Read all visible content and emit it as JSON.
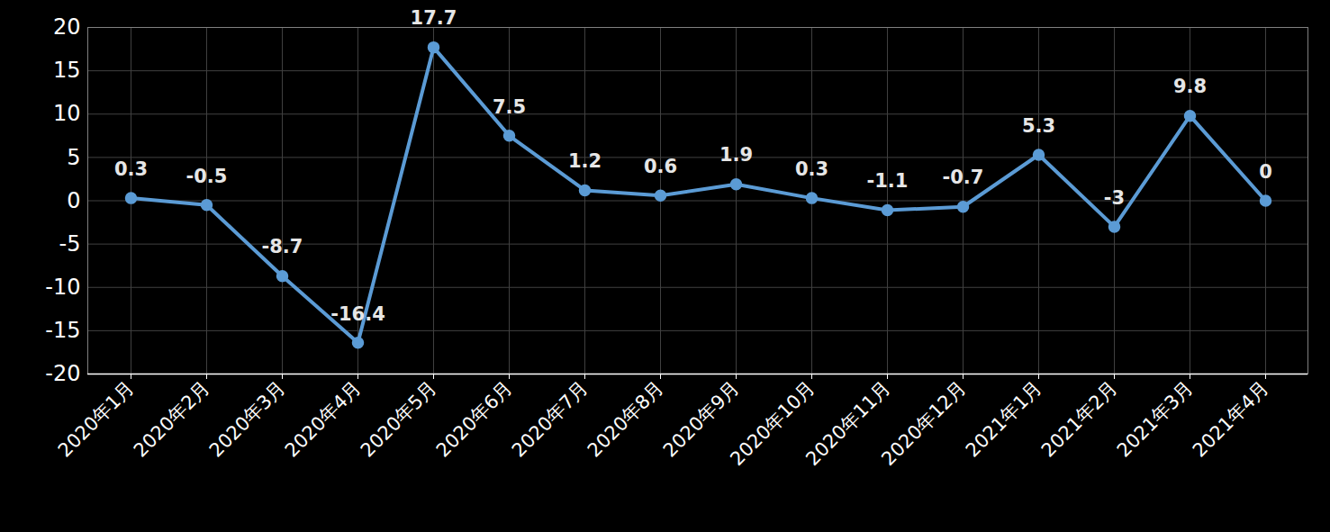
{
  "chart_data": {
    "type": "line",
    "categories": [
      "2020年1月",
      "2020年2月",
      "2020年3月",
      "2020年4月",
      "2020年5月",
      "2020年6月",
      "2020年7月",
      "2020年8月",
      "2020年9月",
      "2020年10月",
      "2020年11月",
      "2020年12月",
      "2021年1月",
      "2021年2月",
      "2021年3月",
      "2021年4月"
    ],
    "values": [
      0.3,
      -0.5,
      -8.7,
      -16.4,
      17.7,
      7.5,
      1.2,
      0.6,
      1.9,
      0.3,
      -1.1,
      -0.7,
      5.3,
      -3,
      9.8,
      0
    ],
    "color": "#5b9bd5",
    "marker": "circle",
    "ylim": [
      -20,
      20
    ],
    "yticks": [
      -20,
      -15,
      -10,
      -5,
      0,
      5,
      10,
      15,
      20
    ],
    "grid": true,
    "data_labels": true
  }
}
